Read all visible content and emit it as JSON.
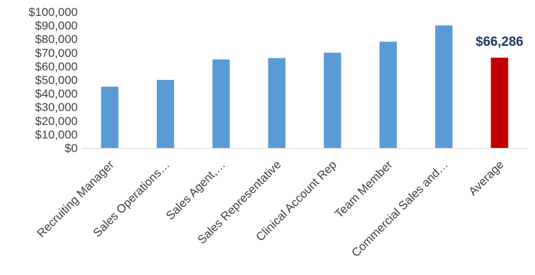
{
  "chart_data": {
    "type": "bar",
    "title": "",
    "xlabel": "",
    "ylabel": "",
    "ylim": [
      0,
      100000
    ],
    "yticks": [
      0,
      10000,
      20000,
      30000,
      40000,
      50000,
      60000,
      70000,
      80000,
      90000,
      100000
    ],
    "ytick_labels": [
      "$0",
      "$10,000",
      "$20,000",
      "$30,000",
      "$40,000",
      "$50,000",
      "$60,000",
      "$70,000",
      "$80,000",
      "$90,000",
      "$100,000"
    ],
    "categories": [
      "Recruiting Manager",
      "Sales Operations…",
      "Sales Agent,…",
      "Sales Representative",
      "Clinical Account Rep",
      "Team Member",
      "Commercial Sales and…",
      "Average"
    ],
    "values": [
      45000,
      50000,
      65000,
      66000,
      70000,
      78000,
      90000,
      66286
    ],
    "bar_colors": [
      "#5B9BD5",
      "#5B9BD5",
      "#5B9BD5",
      "#5B9BD5",
      "#5B9BD5",
      "#5B9BD5",
      "#5B9BD5",
      "#C00000"
    ],
    "data_labels": [
      {
        "category": "Average",
        "text": "$66,286",
        "color": "#1F3864"
      }
    ],
    "grid": false,
    "legend": "none"
  }
}
